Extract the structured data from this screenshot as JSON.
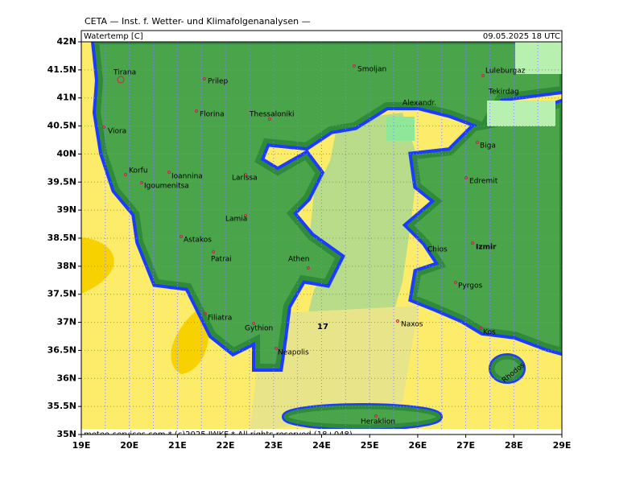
{
  "header": {
    "institute": "CETA — Inst. f. Wetter- und Klimafolgenanalysen —",
    "variable": "Watertemp [C]",
    "valid_time": "09.05.2025 18 UTC"
  },
  "map": {
    "lat_labels": [
      "42N",
      "41.5N",
      "41N",
      "40.5N",
      "40N",
      "39.5N",
      "39N",
      "38.5N",
      "38N",
      "37.5N",
      "37N",
      "36.5N",
      "36N",
      "35.5N",
      "35N"
    ],
    "lon_labels": [
      "19E",
      "20E",
      "21E",
      "22E",
      "23E",
      "24E",
      "25E",
      "26E",
      "27E",
      "28E",
      "29E"
    ],
    "places": [
      "Tirana",
      "Prilep",
      "Smoljan",
      "Luleburgaz",
      "Tekirdag",
      "Alexandr.",
      "Thessaloniki",
      "Florina",
      "Viora",
      "Biga",
      "Korfu",
      "Ioannina",
      "Igoumenitsa",
      "Larissa",
      "Edremit",
      "Lamia",
      "Astakos",
      "Izmir",
      "Patrai",
      "Athen",
      "Chios",
      "Pyrgos",
      "Filiatra",
      "Gythion",
      "Naxos",
      "Kos",
      "Neapolis",
      "Rhodos",
      "Heraklion"
    ],
    "contour_labels": [
      "17"
    ]
  },
  "footer": "meteo-services.com * (c)2025 IWKF * All rights reserved (18+048)"
}
